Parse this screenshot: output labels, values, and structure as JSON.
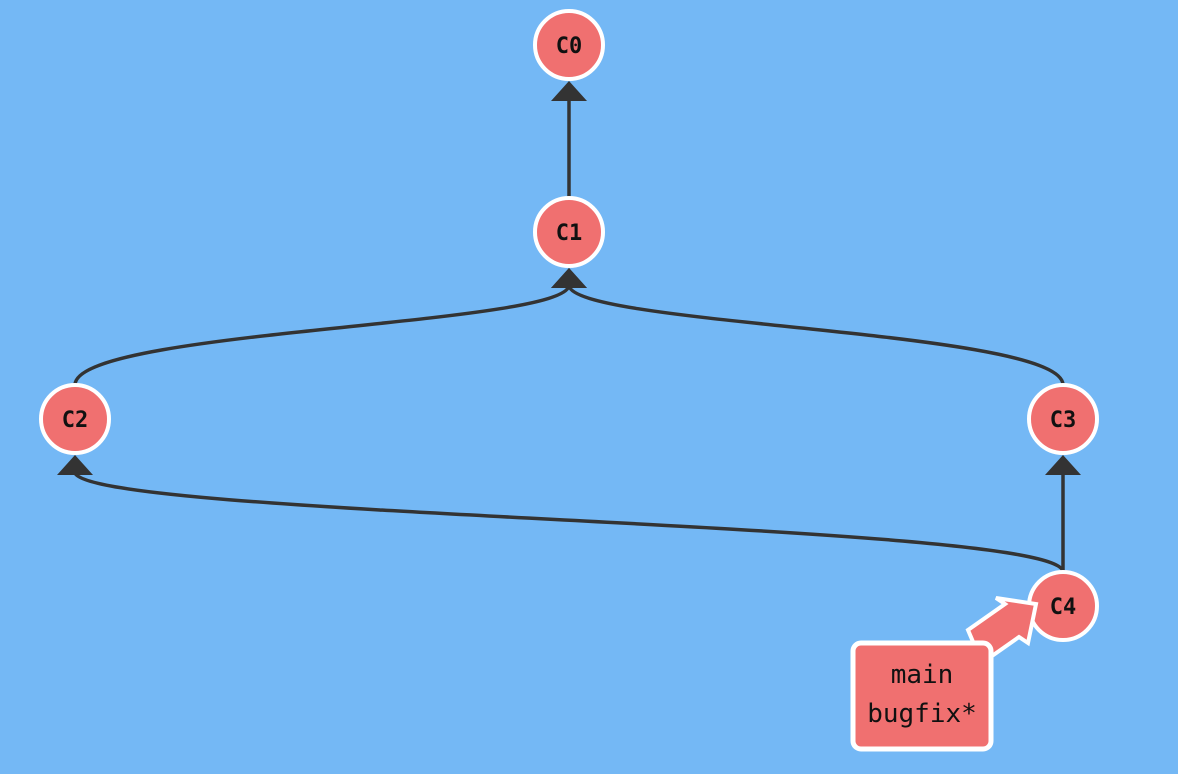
{
  "colors": {
    "background": "#74b8f5",
    "commit_fill": "#f07070",
    "commit_stroke": "#ffffff",
    "edge": "#333333",
    "label_text": "#111111"
  },
  "commits": [
    {
      "id": "C0",
      "label": "C0"
    },
    {
      "id": "C1",
      "label": "C1"
    },
    {
      "id": "C2",
      "label": "C2"
    },
    {
      "id": "C3",
      "label": "C3"
    },
    {
      "id": "C4",
      "label": "C4"
    }
  ],
  "edges": [
    {
      "child": "C1",
      "parent": "C0"
    },
    {
      "child": "C2",
      "parent": "C1"
    },
    {
      "child": "C3",
      "parent": "C1"
    },
    {
      "child": "C4",
      "parent": "C3"
    },
    {
      "child": "C4",
      "parent": "C2"
    }
  ],
  "branches": {
    "points_to": "C4",
    "names": [
      "main",
      "bugfix*"
    ]
  }
}
